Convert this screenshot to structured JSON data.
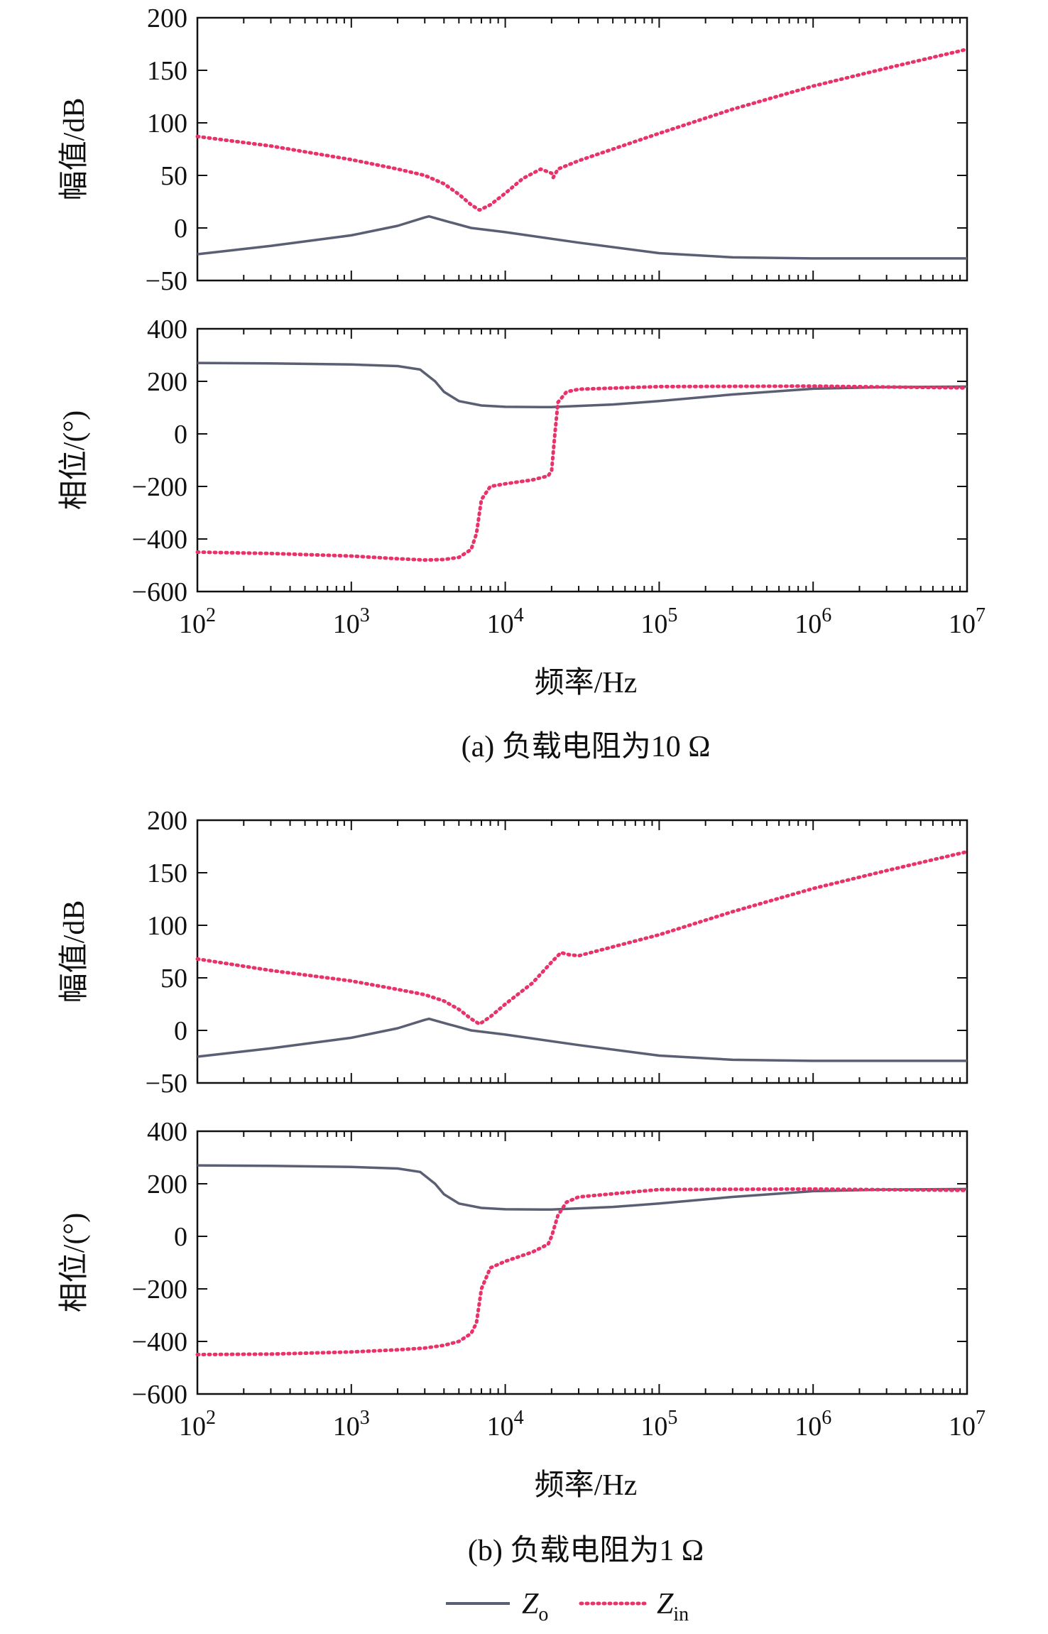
{
  "colors": {
    "zo": "#5b5f73",
    "zin": "#e8336a",
    "axis": "#111111"
  },
  "legend": [
    {
      "name": "Z",
      "sub": "o",
      "style": "solid",
      "color_key": "zo"
    },
    {
      "name": "Z",
      "sub": "in",
      "style": "dotted",
      "color_key": "zin"
    }
  ],
  "chart_data": [
    {
      "type": "line",
      "group": "a",
      "caption": "(a) 负载电阻为10 Ω",
      "xlabel": "频率/Hz",
      "xscale": "log",
      "xlim": [
        100,
        10000000
      ],
      "xtick_bases": [
        "10",
        "10",
        "10",
        "10",
        "10",
        "10"
      ],
      "xtick_exps": [
        "2",
        "3",
        "4",
        "5",
        "6",
        "7"
      ],
      "panels": [
        {
          "id": "a-mag",
          "ylabel": "幅值/dB",
          "ylim": [
            -50,
            200
          ],
          "yticks": [
            "200",
            "150",
            "100",
            "50",
            "0",
            "−50"
          ],
          "show_xticklabels": false,
          "series": [
            {
              "name": "Zo",
              "style": "solid",
              "points": [
                [
                  100,
                  -25
                ],
                [
                  300,
                  -17
                ],
                [
                  1000,
                  -7
                ],
                [
                  2000,
                  2
                ],
                [
                  3000,
                  10
                ],
                [
                  3200,
                  11
                ],
                [
                  4000,
                  7
                ],
                [
                  6000,
                  0
                ],
                [
                  10000,
                  -4
                ],
                [
                  30000,
                  -14
                ],
                [
                  100000,
                  -24
                ],
                [
                  300000,
                  -28
                ],
                [
                  1000000,
                  -29
                ],
                [
                  10000000,
                  -29
                ]
              ]
            },
            {
              "name": "Zin",
              "style": "dotted",
              "points": [
                [
                  100,
                  87
                ],
                [
                  300,
                  78
                ],
                [
                  1000,
                  65
                ],
                [
                  2000,
                  56
                ],
                [
                  3000,
                  50
                ],
                [
                  4000,
                  42
                ],
                [
                  5000,
                  32
                ],
                [
                  6000,
                  22
                ],
                [
                  6800,
                  17
                ],
                [
                  8000,
                  22
                ],
                [
                  10000,
                  33
                ],
                [
                  13000,
                  47
                ],
                [
                  17000,
                  56
                ],
                [
                  20000,
                  52
                ],
                [
                  20500,
                  48
                ],
                [
                  22000,
                  56
                ],
                [
                  30000,
                  64
                ],
                [
                  100000,
                  90
                ],
                [
                  300000,
                  113
                ],
                [
                  1000000,
                  135
                ],
                [
                  3000000,
                  152
                ],
                [
                  10000000,
                  170
                ]
              ]
            }
          ]
        },
        {
          "id": "a-phase",
          "ylabel": "相位/(°)",
          "ylim": [
            -600,
            400
          ],
          "yticks": [
            "400",
            "200",
            "0",
            "−200",
            "−400",
            "−600"
          ],
          "show_xticklabels": true,
          "series": [
            {
              "name": "Zo",
              "style": "solid",
              "points": [
                [
                  100,
                  270
                ],
                [
                  300,
                  268
                ],
                [
                  1000,
                  264
                ],
                [
                  2000,
                  258
                ],
                [
                  2800,
                  245
                ],
                [
                  3500,
                  200
                ],
                [
                  4000,
                  160
                ],
                [
                  5000,
                  125
                ],
                [
                  7000,
                  108
                ],
                [
                  10000,
                  103
                ],
                [
                  20000,
                  102
                ],
                [
                  50000,
                  112
                ],
                [
                  100000,
                  125
                ],
                [
                  300000,
                  150
                ],
                [
                  1000000,
                  172
                ],
                [
                  3000000,
                  178
                ],
                [
                  10000000,
                  180
                ]
              ]
            },
            {
              "name": "Zin",
              "style": "dotted",
              "points": [
                [
                  100,
                  -450
                ],
                [
                  300,
                  -455
                ],
                [
                  1000,
                  -465
                ],
                [
                  2000,
                  -475
                ],
                [
                  3000,
                  -480
                ],
                [
                  4000,
                  -478
                ],
                [
                  5000,
                  -470
                ],
                [
                  6000,
                  -440
                ],
                [
                  6500,
                  -380
                ],
                [
                  7000,
                  -250
                ],
                [
                  8000,
                  -200
                ],
                [
                  10000,
                  -190
                ],
                [
                  15000,
                  -175
                ],
                [
                  19000,
                  -160
                ],
                [
                  20000,
                  -140
                ],
                [
                  21000,
                  0
                ],
                [
                  22000,
                  120
                ],
                [
                  25000,
                  160
                ],
                [
                  30000,
                  170
                ],
                [
                  100000,
                  180
                ],
                [
                  1000000,
                  182
                ],
                [
                  10000000,
                  175
                ]
              ]
            }
          ]
        }
      ]
    },
    {
      "type": "line",
      "group": "b",
      "caption": "(b) 负载电阻为1 Ω",
      "xlabel": "频率/Hz",
      "xscale": "log",
      "xlim": [
        100,
        10000000
      ],
      "xtick_bases": [
        "10",
        "10",
        "10",
        "10",
        "10",
        "10"
      ],
      "xtick_exps": [
        "2",
        "3",
        "4",
        "5",
        "6",
        "7"
      ],
      "panels": [
        {
          "id": "b-mag",
          "ylabel": "幅值/dB",
          "ylim": [
            -50,
            200
          ],
          "yticks": [
            "200",
            "150",
            "100",
            "50",
            "0",
            "−50"
          ],
          "show_xticklabels": false,
          "series": [
            {
              "name": "Zo",
              "style": "solid",
              "points": [
                [
                  100,
                  -25
                ],
                [
                  300,
                  -17
                ],
                [
                  1000,
                  -7
                ],
                [
                  2000,
                  2
                ],
                [
                  3000,
                  10
                ],
                [
                  3200,
                  11
                ],
                [
                  4000,
                  7
                ],
                [
                  6000,
                  0
                ],
                [
                  10000,
                  -4
                ],
                [
                  30000,
                  -14
                ],
                [
                  100000,
                  -24
                ],
                [
                  300000,
                  -28
                ],
                [
                  1000000,
                  -29
                ],
                [
                  10000000,
                  -29
                ]
              ]
            },
            {
              "name": "Zin",
              "style": "dotted",
              "points": [
                [
                  100,
                  68
                ],
                [
                  300,
                  57
                ],
                [
                  1000,
                  47
                ],
                [
                  2000,
                  39
                ],
                [
                  3000,
                  34
                ],
                [
                  4000,
                  28
                ],
                [
                  5000,
                  20
                ],
                [
                  6000,
                  11
                ],
                [
                  6800,
                  6
                ],
                [
                  8000,
                  13
                ],
                [
                  10000,
                  25
                ],
                [
                  15000,
                  45
                ],
                [
                  20000,
                  65
                ],
                [
                  23000,
                  74
                ],
                [
                  26000,
                  72
                ],
                [
                  30000,
                  71
                ],
                [
                  100000,
                  91
                ],
                [
                  300000,
                  113
                ],
                [
                  1000000,
                  135
                ],
                [
                  3000000,
                  152
                ],
                [
                  10000000,
                  170
                ]
              ]
            }
          ]
        },
        {
          "id": "b-phase",
          "ylabel": "相位/(°)",
          "ylim": [
            -600,
            400
          ],
          "yticks": [
            "400",
            "200",
            "0",
            "−200",
            "−400",
            "−600"
          ],
          "show_xticklabels": true,
          "series": [
            {
              "name": "Zo",
              "style": "solid",
              "points": [
                [
                  100,
                  270
                ],
                [
                  300,
                  268
                ],
                [
                  1000,
                  264
                ],
                [
                  2000,
                  258
                ],
                [
                  2800,
                  245
                ],
                [
                  3500,
                  200
                ],
                [
                  4000,
                  160
                ],
                [
                  5000,
                  125
                ],
                [
                  7000,
                  108
                ],
                [
                  10000,
                  103
                ],
                [
                  20000,
                  102
                ],
                [
                  50000,
                  112
                ],
                [
                  100000,
                  125
                ],
                [
                  300000,
                  150
                ],
                [
                  1000000,
                  172
                ],
                [
                  3000000,
                  178
                ],
                [
                  10000000,
                  180
                ]
              ]
            },
            {
              "name": "Zin",
              "style": "dotted",
              "points": [
                [
                  100,
                  -450
                ],
                [
                  300,
                  -448
                ],
                [
                  1000,
                  -440
                ],
                [
                  2000,
                  -432
                ],
                [
                  3000,
                  -425
                ],
                [
                  4000,
                  -415
                ],
                [
                  5000,
                  -400
                ],
                [
                  6000,
                  -370
                ],
                [
                  6500,
                  -330
                ],
                [
                  7000,
                  -200
                ],
                [
                  8000,
                  -120
                ],
                [
                  10000,
                  -95
                ],
                [
                  15000,
                  -60
                ],
                [
                  19000,
                  -30
                ],
                [
                  20000,
                  0
                ],
                [
                  22000,
                  80
                ],
                [
                  25000,
                  130
                ],
                [
                  30000,
                  150
                ],
                [
                  100000,
                  178
                ],
                [
                  1000000,
                  180
                ],
                [
                  10000000,
                  175
                ]
              ]
            }
          ]
        }
      ]
    }
  ]
}
